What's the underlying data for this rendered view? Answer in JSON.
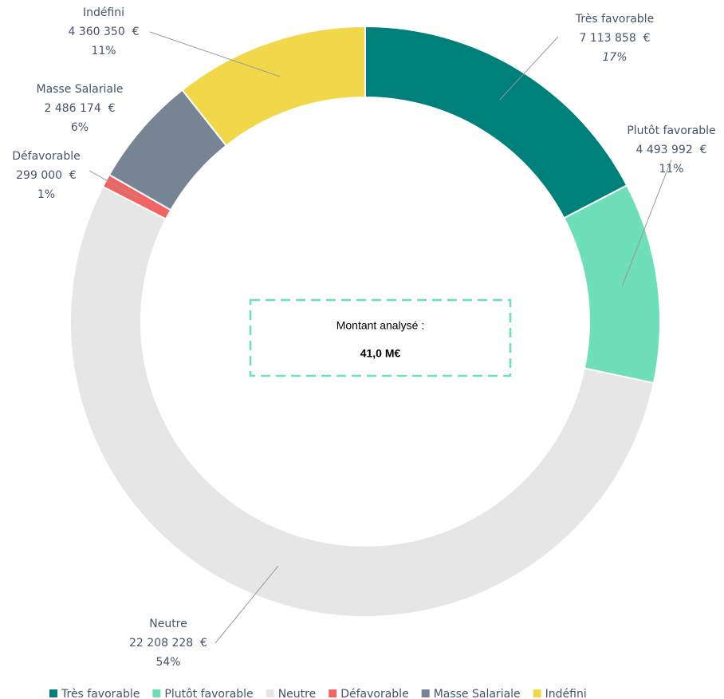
{
  "chart_data": {
    "type": "donut",
    "categories": [
      "Très favorable",
      "Plutôt favorable",
      "Neutre",
      "Défavorable",
      "Masse Salariale",
      "Indéfini"
    ],
    "values": [
      7113858,
      4493992,
      22208228,
      299000,
      2486174,
      4360350
    ],
    "value_labels": [
      "7 113 858  €",
      "4 493 992  €",
      "22 208 228  €",
      "299 000  €",
      "2 486 174  €",
      "4 360 350  €"
    ],
    "percent_labels": [
      "17%",
      "11%",
      "54%",
      "1%",
      "6%",
      "11%"
    ],
    "colors": [
      "#00807a",
      "#6fdfba",
      "#e6e6e6",
      "#f26464",
      "#778493",
      "#f0d84a"
    ],
    "center_label": "Montant analysé :",
    "center_value": "41,0 M€",
    "legend": "bottom"
  }
}
